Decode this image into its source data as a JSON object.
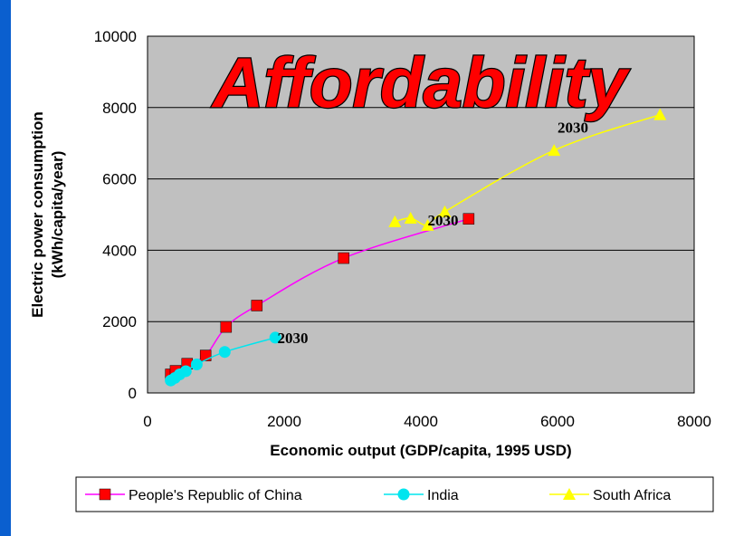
{
  "chart_data": {
    "type": "line",
    "title": "Affordability",
    "xlabel": "Economic output (GDP/capita, 1995 USD)",
    "ylabel_line1": "Electric power consumption",
    "ylabel_line2": "(kWh/capita/year)",
    "xlim": [
      0,
      8000
    ],
    "ylim": [
      0,
      10000
    ],
    "x_ticks": [
      "0",
      "2000",
      "4000",
      "6000",
      "8000"
    ],
    "y_ticks": [
      "0",
      "2000",
      "4000",
      "6000",
      "8000",
      "10000"
    ],
    "grid": true,
    "legend_position": "bottom",
    "series": [
      {
        "name": "People's Republic of China",
        "color": "#ff00ff",
        "marker_color": "#ff0000",
        "marker": "square",
        "points": [
          [
            340,
            520
          ],
          [
            410,
            620
          ],
          [
            580,
            820
          ],
          [
            850,
            1050
          ],
          [
            1150,
            1850
          ],
          [
            1600,
            2450
          ],
          [
            2870,
            3780
          ],
          [
            4700,
            4880
          ]
        ]
      },
      {
        "name": "India",
        "color": "#00e5ee",
        "marker_color": "#00e5ee",
        "marker": "circle",
        "points": [
          [
            340,
            350
          ],
          [
            400,
            420
          ],
          [
            470,
            520
          ],
          [
            560,
            610
          ],
          [
            720,
            800
          ],
          [
            1130,
            1150
          ],
          [
            1870,
            1550
          ]
        ]
      },
      {
        "name": "South Africa",
        "color": "#ffff00",
        "marker_color": "#ffff00",
        "marker": "triangle",
        "points": [
          [
            3620,
            4800
          ],
          [
            3850,
            4900
          ],
          [
            4100,
            4700
          ],
          [
            4350,
            5080
          ],
          [
            5950,
            6800
          ],
          [
            7500,
            7800
          ]
        ]
      }
    ],
    "annotations": [
      {
        "text": "2030",
        "x": 1900,
        "y": 1400
      },
      {
        "text": "2030",
        "x": 4100,
        "y": 4700
      },
      {
        "text": "2030",
        "x": 6000,
        "y": 7300
      }
    ]
  }
}
